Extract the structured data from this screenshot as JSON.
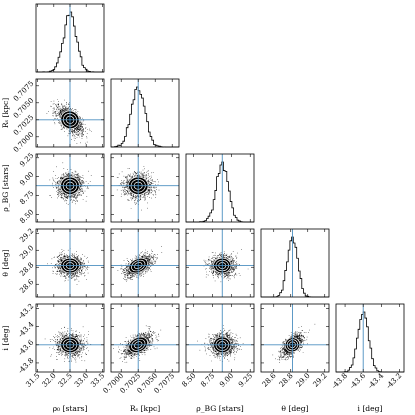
{
  "chart_data": {
    "type": "corner",
    "truth_line_color": "#4c8fc0",
    "histogram_color": "#000000",
    "contour_color": "#ffffff",
    "parameters": [
      {
        "label": "ρ₀ [stars]",
        "axis_label_latex": "\\rho_0 [stars]",
        "range": [
          31.45,
          33.55
        ],
        "ticks": [
          31.5,
          32.0,
          32.5,
          33.0,
          33.5
        ],
        "tick_labels": [
          "31.5",
          "32.0",
          "32.5",
          "33.0",
          "33.5"
        ],
        "truth": 32.5,
        "mean": 32.5,
        "sigma": 0.2
      },
      {
        "label": "Rₛ [kpc]",
        "axis_label_latex": "R_s [kpc]",
        "range": [
          0.6985,
          0.7085
        ],
        "ticks": [
          0.7,
          0.7025,
          0.705,
          0.7075
        ],
        "tick_labels": [
          "0.7000",
          "0.7025",
          "0.7050",
          "0.7075"
        ],
        "truth": 0.7025,
        "mean": 0.7025,
        "sigma": 0.001
      },
      {
        "label": "ρ_BG [stars]",
        "axis_label_latex": "\\rho_{BG} [stars]",
        "range": [
          8.4,
          9.3
        ],
        "ticks": [
          8.5,
          8.75,
          9.0,
          9.25
        ],
        "tick_labels": [
          "8.50",
          "8.75",
          "9.00",
          "9.25"
        ],
        "truth": 8.88,
        "mean": 8.88,
        "sigma": 0.08
      },
      {
        "label": "θ [deg]",
        "axis_label_latex": "\\theta [deg]",
        "range": [
          28.45,
          29.25
        ],
        "ticks": [
          28.6,
          28.8,
          29.0,
          29.2
        ],
        "tick_labels": [
          "28.6",
          "28.8",
          "29.0",
          "29.2"
        ],
        "truth": 28.82,
        "mean": 28.82,
        "sigma": 0.06
      },
      {
        "label": "i [deg]",
        "axis_label_latex": "i [deg]",
        "range": [
          -43.9,
          -43.15
        ],
        "ticks": [
          -43.8,
          -43.6,
          -43.4,
          -43.2
        ],
        "tick_labels": [
          "-43.8",
          "-43.6",
          "-43.4",
          "-43.2"
        ],
        "truth": -43.6,
        "mean": -43.6,
        "sigma": 0.06
      }
    ],
    "correlations": [
      {
        "pair": [
          "ρ₀ [stars]",
          "Rₛ [kpc]"
        ],
        "rho": -0.6
      },
      {
        "pair": [
          "ρ₀ [stars]",
          "ρ_BG [stars]"
        ],
        "rho": 0.0
      },
      {
        "pair": [
          "ρ₀ [stars]",
          "θ [deg]"
        ],
        "rho": 0.0
      },
      {
        "pair": [
          "ρ₀ [stars]",
          "i [deg]"
        ],
        "rho": 0.0
      },
      {
        "pair": [
          "Rₛ [kpc]",
          "ρ_BG [stars]"
        ],
        "rho": 0.0
      },
      {
        "pair": [
          "Rₛ [kpc]",
          "θ [deg]"
        ],
        "rho": 0.55
      },
      {
        "pair": [
          "Rₛ [kpc]",
          "i [deg]"
        ],
        "rho": 0.55
      },
      {
        "pair": [
          "ρ_BG [stars]",
          "θ [deg]"
        ],
        "rho": 0.0
      },
      {
        "pair": [
          "ρ_BG [stars]",
          "i [deg]"
        ],
        "rho": 0.0
      },
      {
        "pair": [
          "θ [deg]",
          "i [deg]"
        ],
        "rho": 0.6
      }
    ]
  }
}
